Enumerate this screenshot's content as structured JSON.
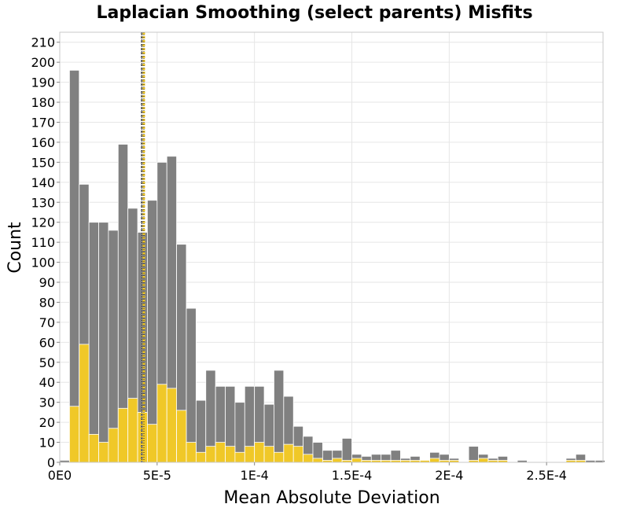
{
  "chart_data": {
    "type": "bar",
    "title": "Laplacian Smoothing (select parents) Misfits",
    "xlabel": "Mean Absolute Deviation",
    "ylabel": "Count",
    "xlim": [
      0,
      0.000279
    ],
    "ylim": [
      0,
      215
    ],
    "bin_width": 5e-06,
    "x_ticks": [
      {
        "value": 0,
        "label": "0E0"
      },
      {
        "value": 5e-05,
        "label": "5E-5"
      },
      {
        "value": 0.0001,
        "label": "1E-4"
      },
      {
        "value": 0.00015,
        "label": "1.5E-4"
      },
      {
        "value": 0.0002,
        "label": "2E-4"
      },
      {
        "value": 0.00025,
        "label": "2.5E-4"
      }
    ],
    "y_ticks": [
      0,
      10,
      20,
      30,
      40,
      50,
      60,
      70,
      80,
      90,
      100,
      110,
      120,
      130,
      140,
      150,
      160,
      170,
      180,
      190,
      200,
      210
    ],
    "grid": true,
    "legend": "none",
    "series": [
      {
        "color": "#808080",
        "values": [
          1,
          196,
          139,
          120,
          120,
          116,
          159,
          127,
          115,
          131,
          150,
          153,
          109,
          77,
          31,
          46,
          38,
          38,
          30,
          38,
          38,
          29,
          46,
          33,
          18,
          13,
          10,
          6,
          6,
          12,
          4,
          3,
          4,
          4,
          6,
          2,
          3,
          1,
          5,
          4,
          2,
          0,
          8,
          4,
          2,
          3,
          0,
          1,
          0,
          0,
          0,
          0,
          2,
          4,
          1,
          1
        ]
      },
      {
        "color": "#f0c828",
        "values": [
          0,
          28,
          59,
          14,
          10,
          17,
          27,
          32,
          25,
          19,
          39,
          37,
          26,
          10,
          5,
          8,
          10,
          8,
          5,
          8,
          10,
          8,
          5,
          9,
          8,
          4,
          2,
          1,
          2,
          1,
          2,
          1,
          1,
          1,
          1,
          1,
          1,
          1,
          2,
          1,
          1,
          0,
          1,
          2,
          1,
          1,
          0,
          0,
          0,
          0,
          0,
          0,
          1,
          1,
          0,
          0
        ]
      }
    ],
    "reference_lines": [
      {
        "x": 4.22e-05,
        "color": "#808080"
      },
      {
        "x": 4.32e-05,
        "color": "#f0c828"
      }
    ]
  }
}
